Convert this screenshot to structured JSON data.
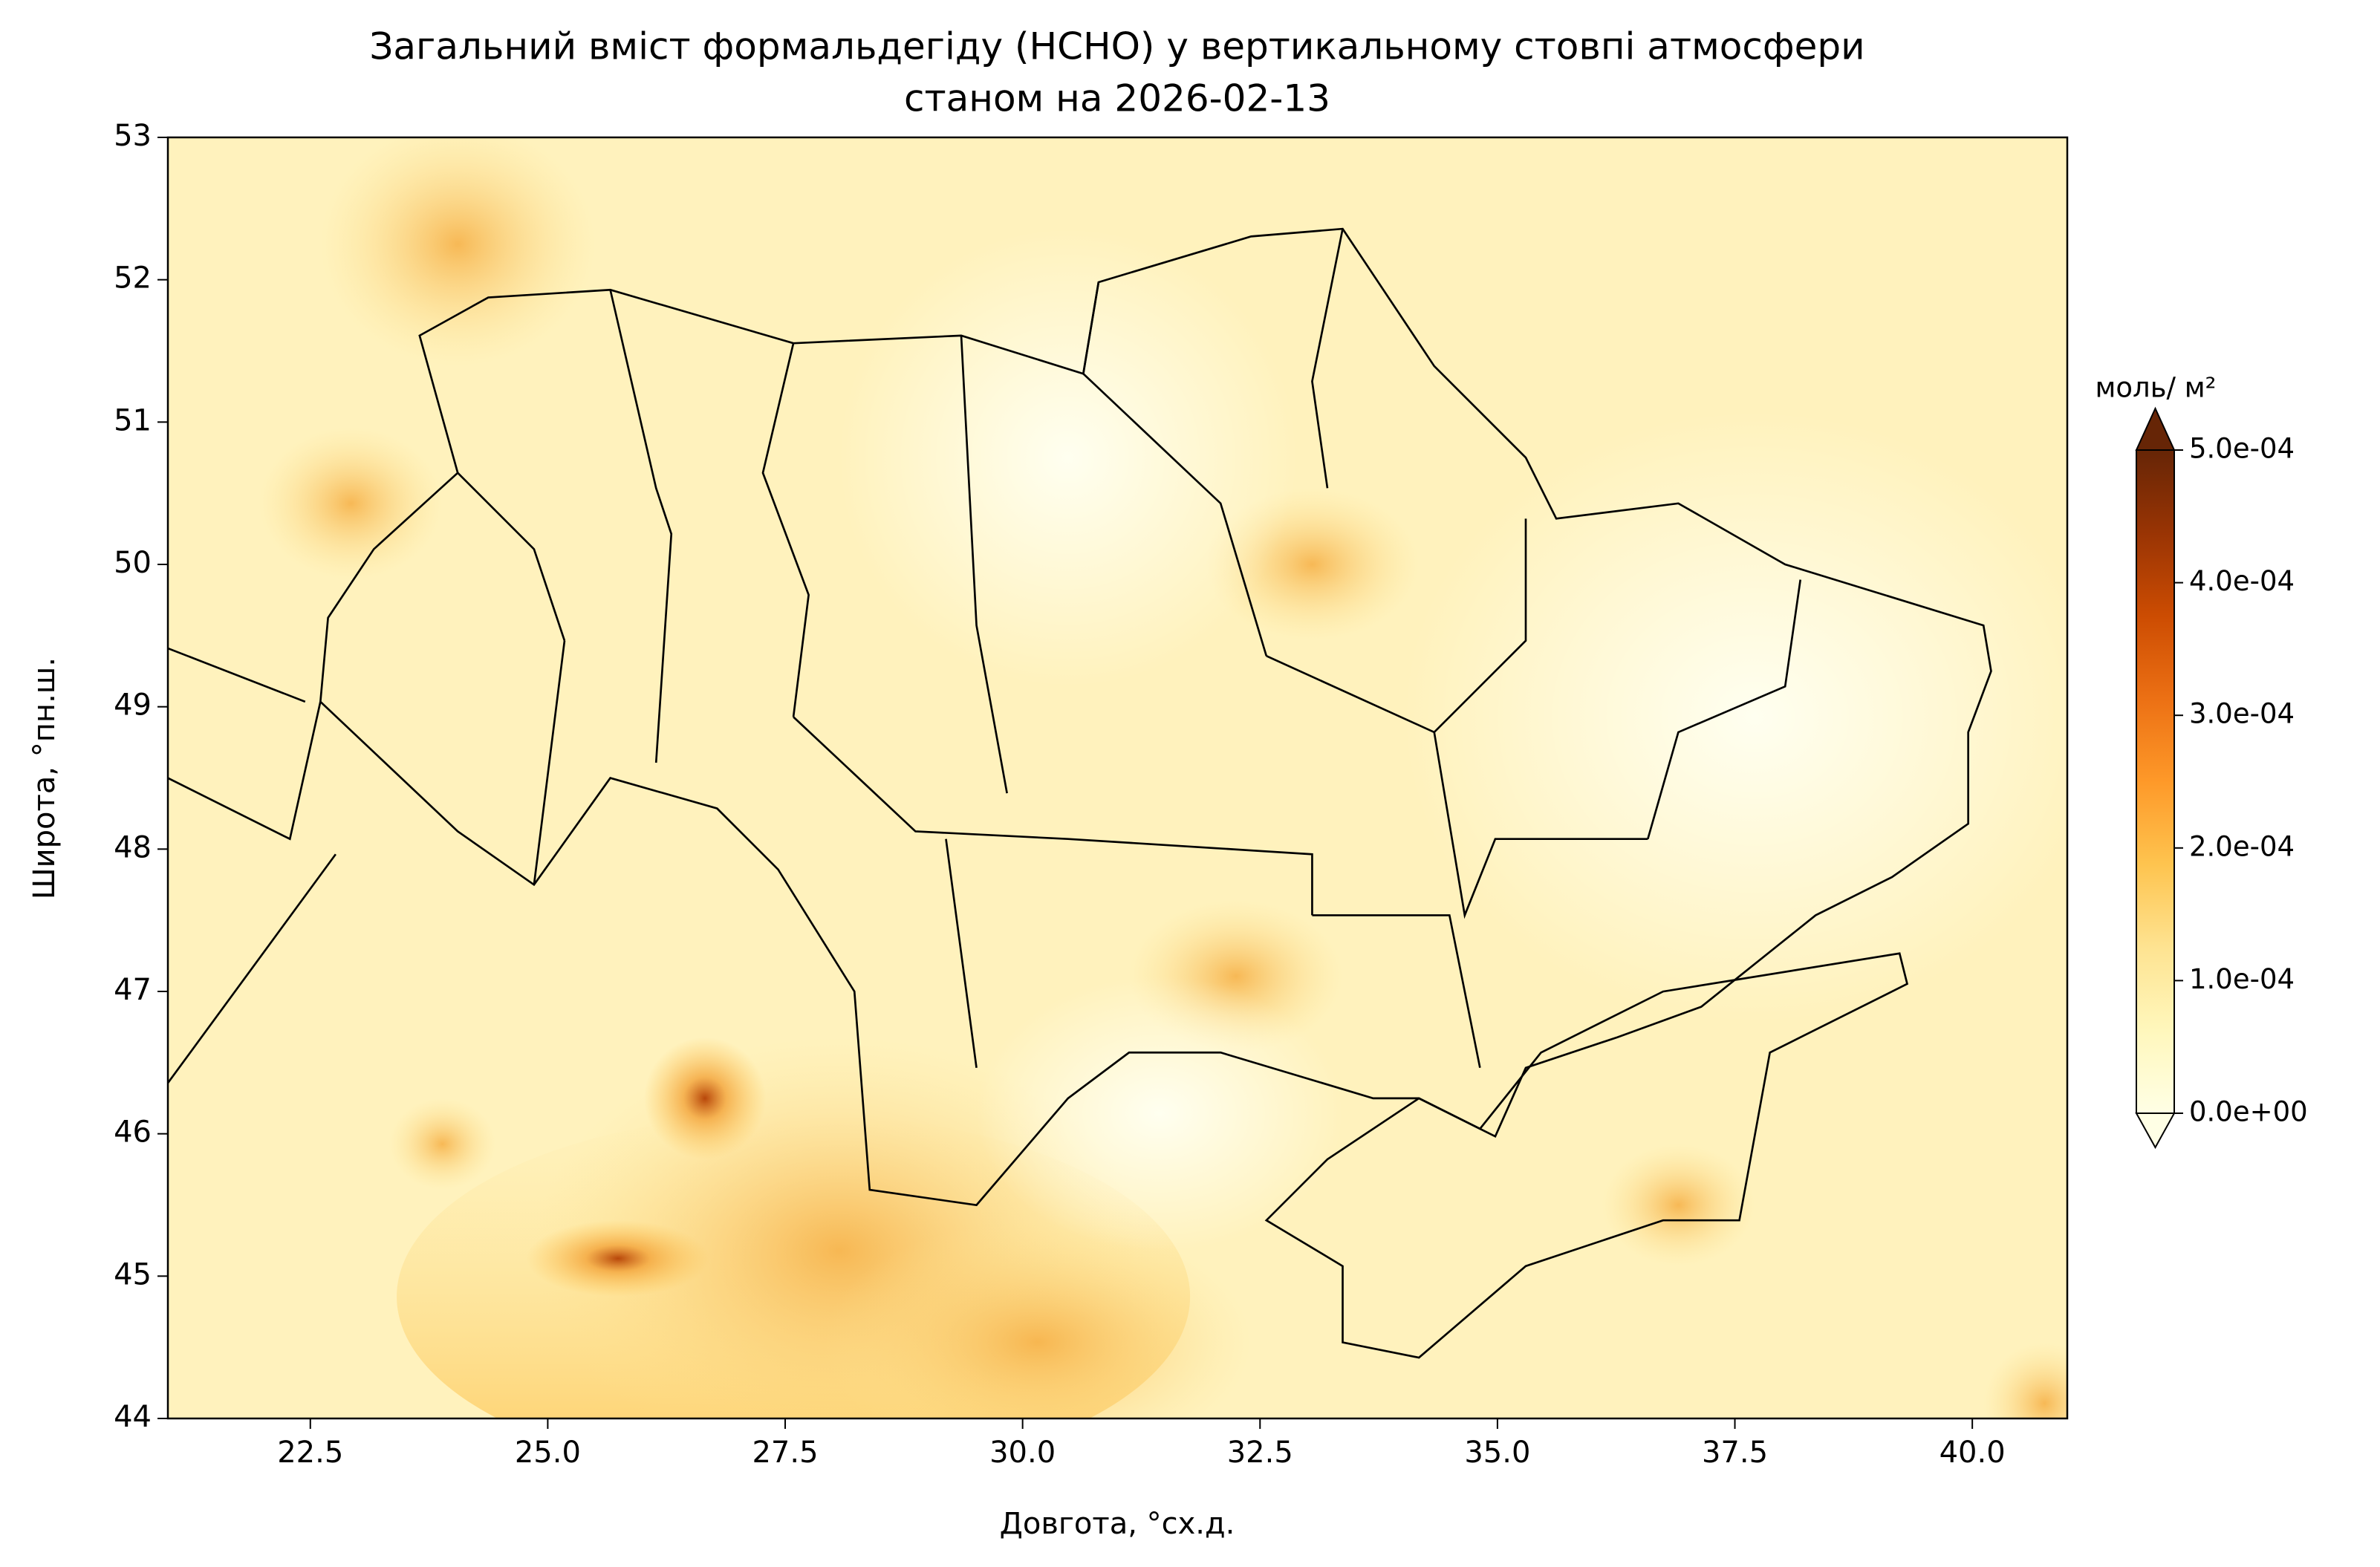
{
  "chart_data": {
    "type": "contour-map",
    "title": "Загальний вміст формальдегіду (HCHO) у вертикальному стовпі атмосфери",
    "subtitle": "станом на 2026-02-13",
    "x_label": "Довгота, °сх.д.",
    "y_label": "Широта, °пн.ш.",
    "xlim": [
      21,
      41
    ],
    "xticks": [
      22.5,
      {
        "value": 25,
        "label": "25.0"
      },
      27.5,
      {
        "value": 30,
        "label": "30.0"
      },
      32.5,
      {
        "value": 35,
        "label": "35.0"
      },
      37.5,
      {
        "value": 40,
        "label": "40.0"
      }
    ],
    "ylim": [
      44,
      53
    ],
    "yticks": [
      44,
      45,
      46,
      47,
      48,
      49,
      50,
      51,
      52,
      53
    ],
    "colorbar": {
      "label": "моль/ м²",
      "lim": [
        0,
        0.0005
      ],
      "ticks": [
        {
          "value": 0,
          "label": "0.0e+00"
        },
        {
          "value": 0.0001,
          "label": "1.0e-04"
        },
        {
          "value": 0.0002,
          "label": "2.0e-04"
        },
        {
          "value": 0.0003,
          "label": "3.0e-04"
        },
        {
          "value": 0.0004,
          "label": "4.0e-04"
        },
        {
          "value": 0.0005,
          "label": "5.0e-04"
        }
      ],
      "colors": [
        "#ffffe5",
        "#fff7bc",
        "#fee391",
        "#fec44f",
        "#fe9929",
        "#ec7014",
        "#cc4c02",
        "#993404",
        "#662506"
      ]
    }
  }
}
